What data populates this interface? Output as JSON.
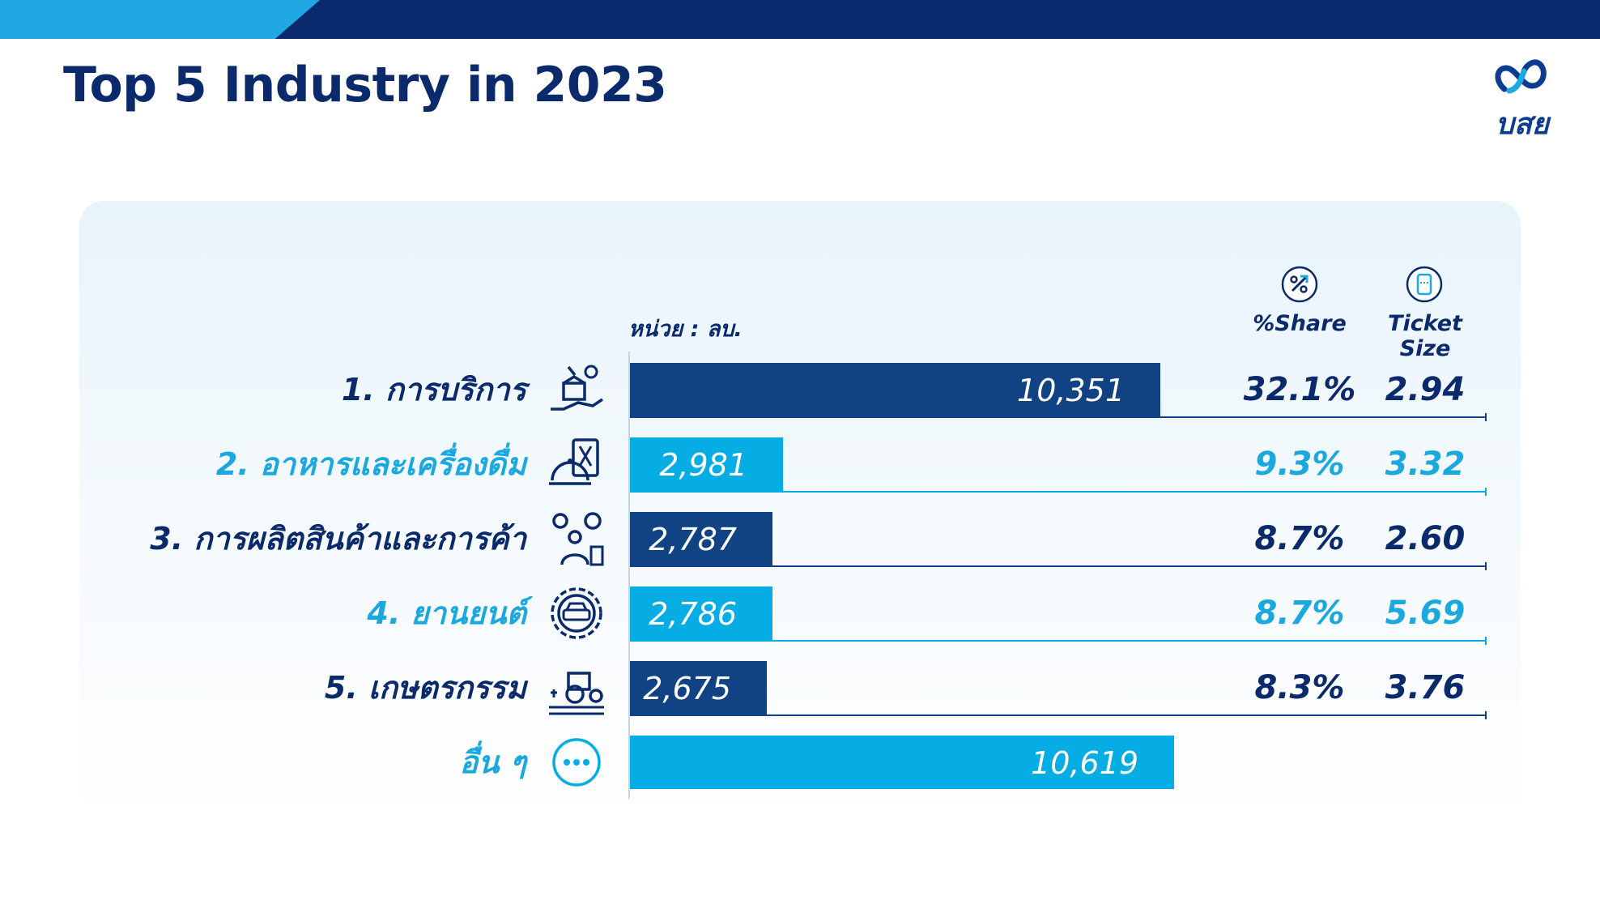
{
  "header": {
    "title": "Top 5 Industry in 2023",
    "logo_text": "บสย",
    "logo_icon": "infinity-loop-icon"
  },
  "colors": {
    "dark": "#114384",
    "light": "#06ace4",
    "dark_text": "#0b2a6b",
    "light_text": "#1ba8df",
    "topbar": "#0a2a6e",
    "accent": "#1ea7e1"
  },
  "columns": {
    "unit_label": "หน่วย : ลบ.",
    "share": "%Share",
    "ticket": "Ticket Size",
    "share_icon": "percent-growth-icon",
    "ticket_icon": "ticket-icon"
  },
  "chart_data": {
    "type": "bar",
    "orientation": "horizontal",
    "title": "Top 5 Industry in 2023",
    "unit": "หน่วย : ลบ.",
    "categories": [
      "1. การบริการ",
      "2. อาหารและเครื่องดื่ม",
      "3. การผลิตสินค้าและการค้า",
      "4. ยานยนต์",
      "5. เกษตรกรรม",
      "อื่น ๆ"
    ],
    "values": [
      10351,
      2981,
      2787,
      2786,
      2675,
      10619
    ],
    "value_labels": [
      "10,351",
      "2,981",
      "2,787",
      "2,786",
      "2,675",
      "10,619"
    ],
    "share": [
      "32.1%",
      "9.3%",
      "8.7%",
      "8.7%",
      "8.3%",
      ""
    ],
    "ticket_size": [
      "2.94",
      "3.32",
      "2.60",
      "5.69",
      "3.76",
      ""
    ],
    "icons": [
      "service-hand-box-icon",
      "food-menu-cloche-icon",
      "factory-worker-gears-icon",
      "car-gear-icon",
      "tractor-field-icon",
      "more-dots-icon"
    ],
    "tones": [
      "dark",
      "light",
      "dark",
      "light",
      "dark",
      "light"
    ],
    "grid": false,
    "legend": "none"
  }
}
